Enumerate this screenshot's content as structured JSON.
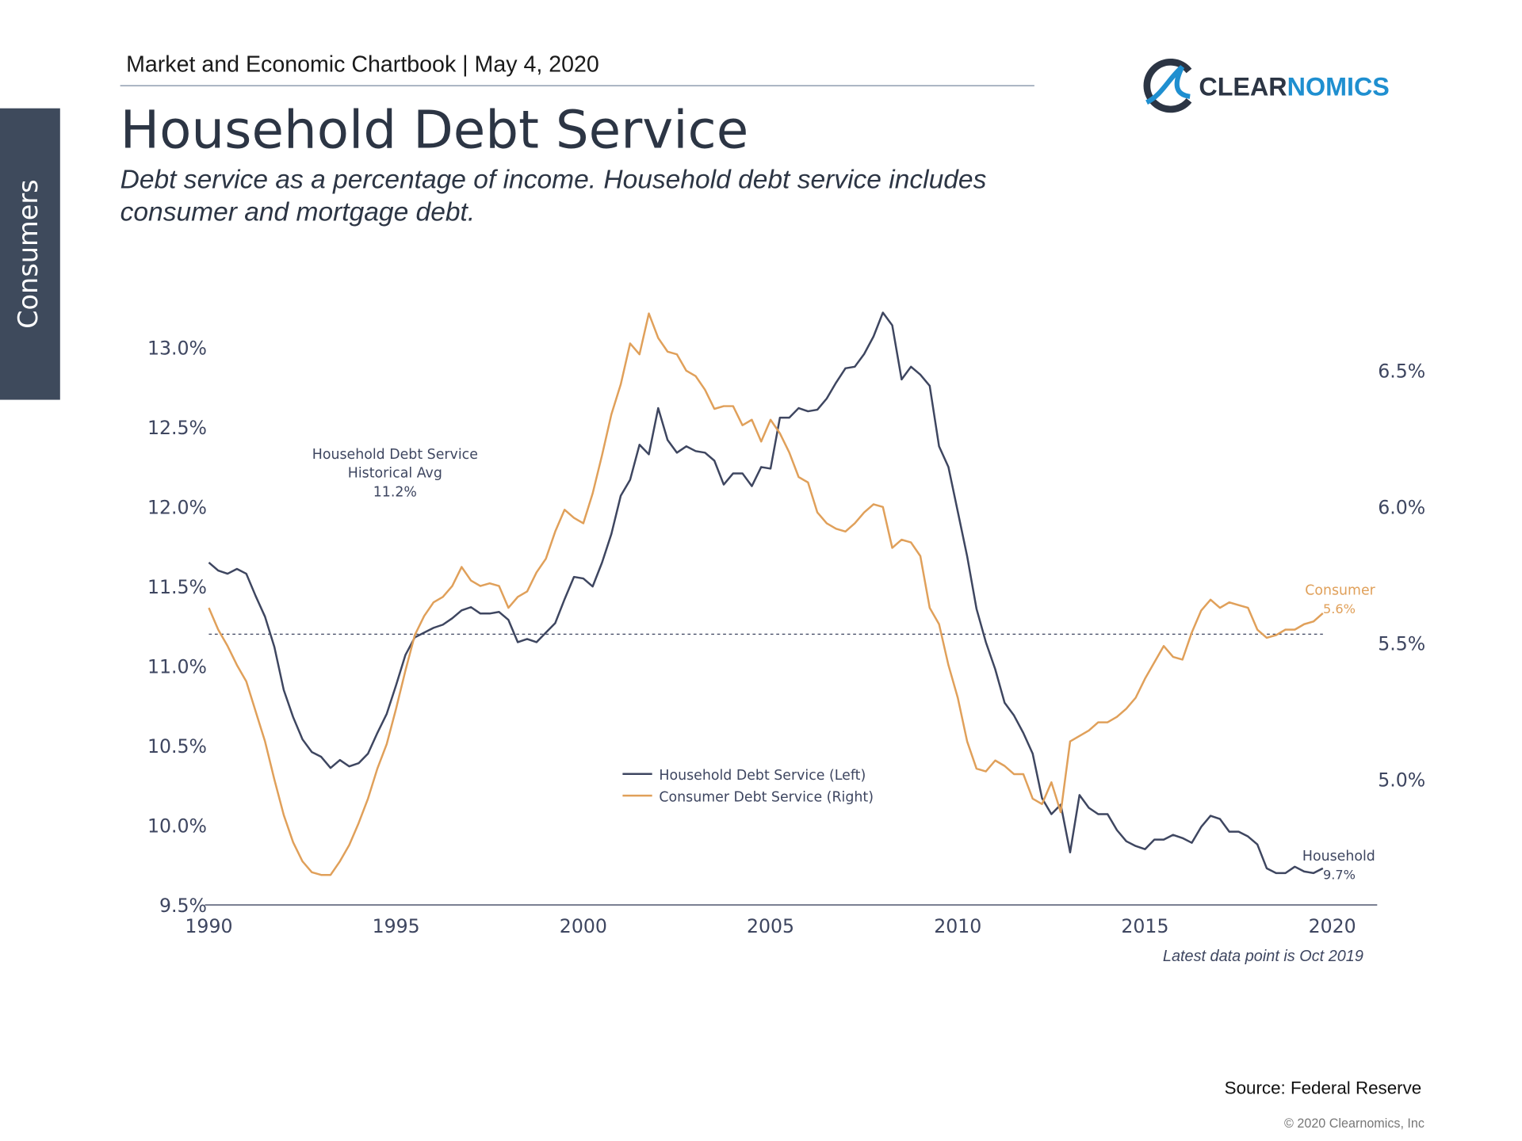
{
  "header": "Market and Economic Chartbook | May 4, 2020",
  "logo": {
    "part1": "CLEAR",
    "part2": "NOMICS"
  },
  "sidebar": "Consumers",
  "source": "Source: Federal Reserve",
  "copyright": "© 2020 Clearnomics, Inc",
  "chart_data": {
    "type": "line",
    "title": "Household Debt Service",
    "subtitle": [
      "Debt service as a percentage of income. Household debt service includes",
      "consumer and mortgage debt."
    ],
    "x": [
      1990,
      1990.25,
      1990.5,
      1990.75,
      1991,
      1991.25,
      1991.5,
      1991.75,
      1992,
      1992.25,
      1992.5,
      1992.75,
      1993,
      1993.25,
      1993.5,
      1993.75,
      1994,
      1994.25,
      1994.5,
      1994.75,
      1995,
      1995.25,
      1995.5,
      1995.75,
      1996,
      1996.25,
      1996.5,
      1996.75,
      1997,
      1997.25,
      1997.5,
      1997.75,
      1998,
      1998.25,
      1998.5,
      1998.75,
      1999,
      1999.25,
      1999.5,
      1999.75,
      2000,
      2000.25,
      2000.5,
      2000.75,
      2001,
      2001.25,
      2001.5,
      2001.75,
      2002,
      2002.25,
      2002.5,
      2002.75,
      2003,
      2003.25,
      2003.5,
      2003.75,
      2004,
      2004.25,
      2004.5,
      2004.75,
      2005,
      2005.25,
      2005.5,
      2005.75,
      2006,
      2006.25,
      2006.5,
      2006.75,
      2007,
      2007.25,
      2007.5,
      2007.75,
      2008,
      2008.25,
      2008.5,
      2008.75,
      2009,
      2009.25,
      2009.5,
      2009.75,
      2010,
      2010.25,
      2010.5,
      2010.75,
      2011,
      2011.25,
      2011.5,
      2011.75,
      2012,
      2012.25,
      2012.5,
      2012.75,
      2013,
      2013.25,
      2013.5,
      2013.75,
      2014,
      2014.25,
      2014.5,
      2014.75,
      2015,
      2015.25,
      2015.5,
      2015.75,
      2016,
      2016.25,
      2016.5,
      2016.75,
      2017,
      2017.25,
      2017.5,
      2017.75,
      2018,
      2018.25,
      2018.5,
      2018.75,
      2019,
      2019.25,
      2019.5,
      2019.75
    ],
    "xlim": [
      1990,
      2021.2
    ],
    "xticks": [
      1990,
      1995,
      2000,
      2005,
      2010,
      2015,
      2020
    ],
    "ylim": [
      9.5,
      13.3
    ],
    "yticks": [
      {
        "value": 9.5,
        "label": "9.5%"
      },
      {
        "value": 10,
        "label": "10.0%"
      },
      {
        "value": 10.5,
        "label": "10.5%"
      },
      {
        "value": 11,
        "label": "11.0%"
      },
      {
        "value": 11.5,
        "label": "11.5%"
      },
      {
        "value": 12,
        "label": "12.0%"
      },
      {
        "value": 12.5,
        "label": "12.5%"
      },
      {
        "value": 13,
        "label": "13.0%"
      }
    ],
    "y2lim": [
      4.54,
      6.76
    ],
    "y2ticks": [
      {
        "value": 5,
        "label": "5.0%"
      },
      {
        "value": 5.5,
        "label": "5.5%"
      },
      {
        "value": 6,
        "label": "6.0%"
      },
      {
        "value": 6.5,
        "label": "6.5%"
      }
    ],
    "grid": false,
    "series": [
      {
        "name": "Household Debt Service (Left)",
        "color": "#3e4660",
        "end_label": "Household",
        "end_value_label": "9.7%",
        "values": [
          11.65,
          11.6,
          11.58,
          11.61,
          11.58,
          11.44,
          11.31,
          11.12,
          10.85,
          10.68,
          10.54,
          10.46,
          10.43,
          10.36,
          10.41,
          10.37,
          10.39,
          10.45,
          10.58,
          10.7,
          10.88,
          11.07,
          11.18,
          11.21,
          11.24,
          11.26,
          11.3,
          11.35,
          11.37,
          11.33,
          11.33,
          11.34,
          11.29,
          11.15,
          11.17,
          11.15,
          11.21,
          11.27,
          11.42,
          11.56,
          11.55,
          11.5,
          11.65,
          11.83,
          12.07,
          12.17,
          12.39,
          12.33,
          12.62,
          12.42,
          12.34,
          12.38,
          12.35,
          12.34,
          12.29,
          12.14,
          12.21,
          12.21,
          12.13,
          12.25,
          12.24,
          12.56,
          12.56,
          12.62,
          12.6,
          12.61,
          12.68,
          12.78,
          12.87,
          12.88,
          12.96,
          13.07,
          13.22,
          13.14,
          12.8,
          12.88,
          12.83,
          12.76,
          12.38,
          12.25,
          11.97,
          11.69,
          11.36,
          11.15,
          10.98,
          10.77,
          10.69,
          10.58,
          10.45,
          10.17,
          10.07,
          10.13,
          9.83,
          10.19,
          10.11,
          10.07,
          10.07,
          9.97,
          9.9,
          9.87,
          9.85,
          9.91,
          9.91,
          9.94,
          9.92,
          9.89,
          9.99,
          10.06,
          10.04,
          9.96,
          9.96,
          9.93,
          9.88,
          9.73,
          9.7,
          9.7,
          9.74,
          9.71,
          9.7,
          9.73
        ]
      },
      {
        "name": "Consumer Debt Service (Right)",
        "color": "#e0a05a",
        "axis": "y2",
        "end_label": "Consumer",
        "end_value_label": "5.6%",
        "values": [
          5.63,
          5.55,
          5.49,
          5.42,
          5.36,
          5.25,
          5.14,
          5.0,
          4.87,
          4.77,
          4.7,
          4.66,
          4.65,
          4.65,
          4.7,
          4.76,
          4.84,
          4.93,
          5.04,
          5.13,
          5.26,
          5.4,
          5.53,
          5.6,
          5.65,
          5.67,
          5.71,
          5.78,
          5.73,
          5.71,
          5.72,
          5.71,
          5.63,
          5.67,
          5.69,
          5.76,
          5.81,
          5.91,
          5.99,
          5.96,
          5.94,
          6.05,
          6.19,
          6.34,
          6.45,
          6.6,
          6.56,
          6.71,
          6.62,
          6.57,
          6.56,
          6.5,
          6.48,
          6.43,
          6.36,
          6.37,
          6.37,
          6.3,
          6.32,
          6.24,
          6.32,
          6.27,
          6.2,
          6.11,
          6.09,
          5.98,
          5.94,
          5.92,
          5.91,
          5.94,
          5.98,
          6.01,
          6.0,
          5.85,
          5.88,
          5.87,
          5.82,
          5.63,
          5.57,
          5.42,
          5.3,
          5.14,
          5.04,
          5.03,
          5.07,
          5.05,
          5.02,
          5.02,
          4.93,
          4.91,
          4.99,
          4.88,
          5.14,
          5.16,
          5.18,
          5.21,
          5.21,
          5.23,
          5.26,
          5.3,
          5.37,
          5.43,
          5.49,
          5.45,
          5.44,
          5.54,
          5.62,
          5.66,
          5.63,
          5.65,
          5.64,
          5.63,
          5.55,
          5.52,
          5.53,
          5.55,
          5.55,
          5.57,
          5.58,
          5.61
        ]
      }
    ],
    "reference_line": {
      "value": 11.2,
      "label": [
        "Household Debt Service",
        "Historical Avg"
      ],
      "value_label": "11.2%"
    },
    "note": "Latest data point is Oct 2019"
  }
}
